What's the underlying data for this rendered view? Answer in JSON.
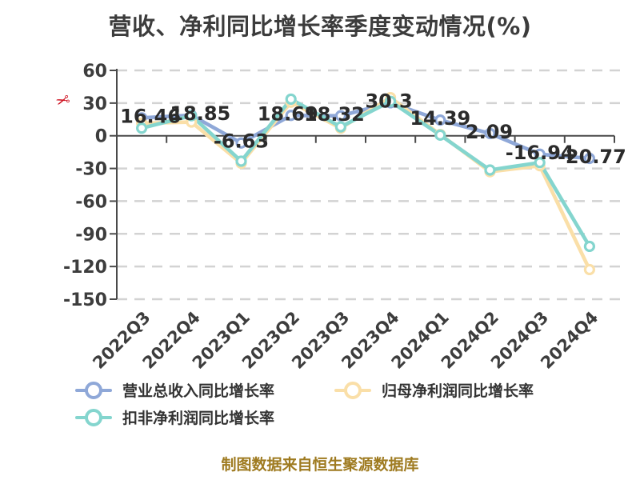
{
  "title": "营收、净利同比增长率季度变动情况(%)",
  "source_note": "制图数据来自恒生聚源数据库",
  "icons": {
    "scissors": "✂"
  },
  "colors": {
    "title_text": "#3c3c3c",
    "axis_text": "#3d3d3d",
    "axis_line": "#4a4a4a",
    "gridline": "#d3d3d3",
    "data_label_text": "#2b2b2b",
    "legend_text": "#333333",
    "source_text": "#9f7b21",
    "watermark": "#cf1322",
    "background": "#ffffff"
  },
  "chart_data": {
    "type": "line",
    "title": "营收、净利同比增长率季度变动情况(%)",
    "categories": [
      "2022Q3",
      "2022Q4",
      "2023Q1",
      "2023Q2",
      "2023Q3",
      "2023Q4",
      "2024Q1",
      "2024Q2",
      "2024Q3",
      "2024Q4"
    ],
    "series": [
      {
        "name": "营业总收入同比增长率",
        "color": "#8FA8D8",
        "values": [
          16.46,
          18.85,
          -6.63,
          18.69,
          18.32,
          30.3,
          14.39,
          2.09,
          -16.94,
          -20.77
        ],
        "labels": [
          "16.46",
          "18.85",
          "-6.63",
          "18.69",
          "18.32",
          "30.3",
          "14.39",
          "2.09",
          "-16.94",
          "-20.77"
        ],
        "show_labels": true
      },
      {
        "name": "归母净利润同比增长率",
        "color": "#FADFA8",
        "values": [
          11.5,
          12.6,
          -25.2,
          30.8,
          7.0,
          35.0,
          1.2,
          -33.0,
          -27.5,
          -122.8
        ],
        "show_labels": false
      },
      {
        "name": "扣非净利润同比增长率",
        "color": "#84D5CE",
        "values": [
          7.0,
          18.4,
          -23.3,
          33.6,
          8.2,
          31.6,
          0.6,
          -31.4,
          -24.6,
          -101.5
        ],
        "show_labels": false
      }
    ],
    "xlabel": "",
    "ylabel": "",
    "ylim": [
      -150,
      60
    ],
    "y_ticks": [
      60,
      30,
      0,
      -30,
      -60,
      -90,
      -120,
      -150
    ],
    "grid": "dashed horizontal gridlines",
    "x_axis_position": "at zero",
    "legend_position": "bottom-left",
    "marker": "hollow circle"
  }
}
